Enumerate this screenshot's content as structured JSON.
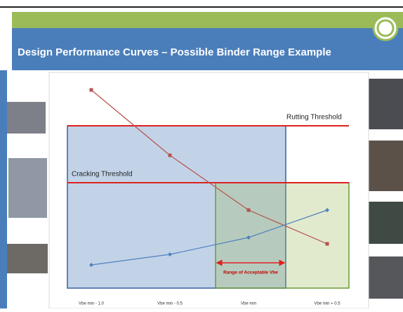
{
  "slide": {
    "title": "Design Performance Curves – Possible Binder Range Example"
  },
  "chart_data": {
    "type": "line",
    "categories": [
      "Vbe min - 1.0",
      "Vbe min - 0.5",
      "Vbe min",
      "Vbe min + 0.5"
    ],
    "series": [
      {
        "color": "#b5524c",
        "values": [
          94,
          63,
          37,
          21
        ]
      },
      {
        "color": "#4f81bd",
        "values": [
          11,
          16,
          24,
          37
        ]
      }
    ],
    "thresholds": [
      {
        "label": "Rutting Threshold",
        "value": 77,
        "color": "#e02020"
      },
      {
        "label": "Cracking Threshold",
        "value": 50,
        "color": "#e02020"
      }
    ],
    "annotation": "Range of Acceptable Vbe",
    "ylim": [
      0,
      100
    ]
  }
}
